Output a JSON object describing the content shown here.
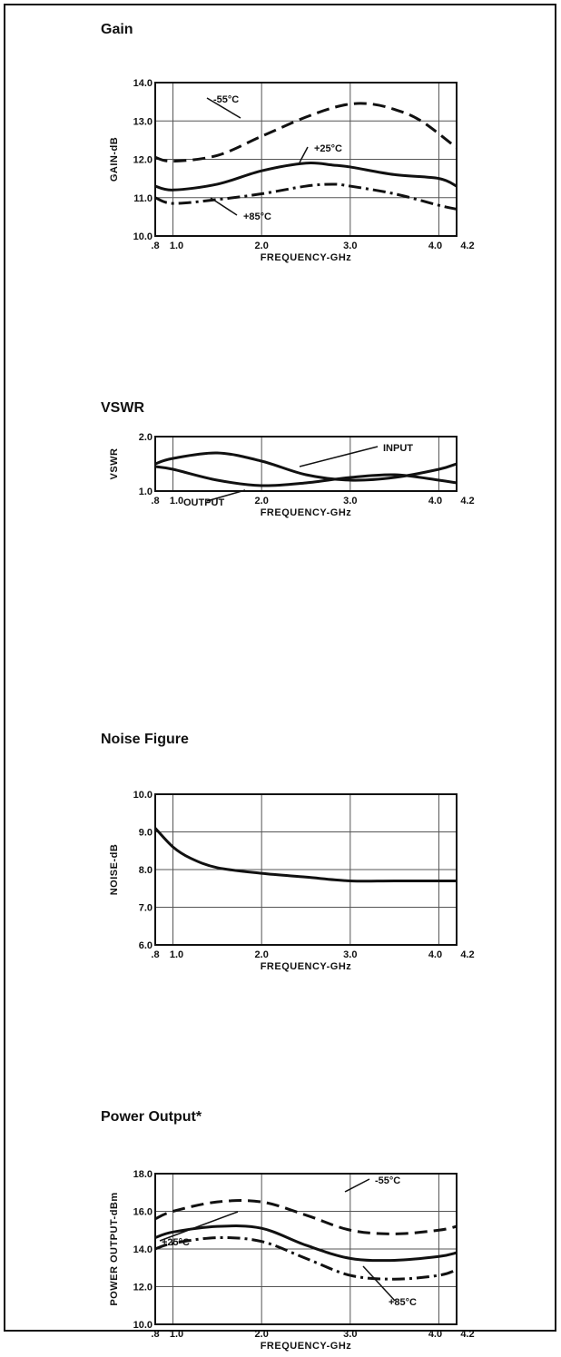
{
  "chart_data": [
    {
      "type": "line",
      "title": "Gain",
      "xlabel": "FREQUENCY-GHz",
      "ylabel": "GAIN-dB",
      "xlim": [
        0.8,
        4.2
      ],
      "ylim": [
        10.0,
        14.0
      ],
      "x_ticks": [
        ".8",
        "1.0",
        "2.0",
        "3.0",
        "4.0",
        "4.2"
      ],
      "y_ticks": [
        "10.0",
        "11.0",
        "12.0",
        "13.0",
        "14.0"
      ],
      "grid": true,
      "series": [
        {
          "name": "-55°C",
          "style": "dashed",
          "x": [
            0.8,
            1.0,
            1.5,
            2.0,
            2.5,
            2.9,
            3.2,
            3.5,
            3.8,
            4.2
          ],
          "y": [
            12.05,
            11.95,
            12.1,
            12.6,
            13.1,
            13.4,
            13.45,
            13.3,
            13.0,
            12.3
          ]
        },
        {
          "name": "+25°C",
          "style": "solid",
          "x": [
            0.8,
            1.0,
            1.5,
            2.0,
            2.5,
            2.8,
            3.0,
            3.5,
            4.0,
            4.2
          ],
          "y": [
            11.3,
            11.2,
            11.35,
            11.7,
            11.9,
            11.85,
            11.8,
            11.6,
            11.5,
            11.3
          ]
        },
        {
          "name": "+85°C",
          "style": "dashdot",
          "x": [
            0.8,
            1.0,
            1.5,
            2.0,
            2.5,
            2.8,
            3.0,
            3.5,
            4.0,
            4.2
          ],
          "y": [
            11.0,
            10.85,
            10.95,
            11.1,
            11.3,
            11.35,
            11.3,
            11.1,
            10.8,
            10.7
          ]
        }
      ],
      "annotations": [
        "-55°C",
        "+25°C",
        "+85°C"
      ]
    },
    {
      "type": "line",
      "title": "VSWR",
      "xlabel": "FREQUENCY-GHz",
      "ylabel": "VSWR",
      "xlim": [
        0.8,
        4.2
      ],
      "ylim": [
        1.0,
        2.0
      ],
      "y_ticks": [
        "1.0",
        "2.0"
      ],
      "x_ticks": [
        ".8",
        "1.0",
        "2.0",
        "3.0",
        "4.0",
        "4.2"
      ],
      "grid": true,
      "series": [
        {
          "name": "INPUT",
          "style": "solid",
          "x": [
            0.8,
            1.0,
            1.5,
            2.0,
            2.5,
            3.0,
            3.5,
            4.0,
            4.2
          ],
          "y": [
            1.5,
            1.6,
            1.7,
            1.55,
            1.3,
            1.2,
            1.25,
            1.4,
            1.5
          ]
        },
        {
          "name": "OUTPUT",
          "style": "solid",
          "x": [
            0.8,
            1.0,
            1.5,
            2.0,
            2.5,
            3.0,
            3.5,
            4.0,
            4.2
          ],
          "y": [
            1.45,
            1.4,
            1.2,
            1.1,
            1.15,
            1.25,
            1.3,
            1.2,
            1.15
          ]
        }
      ],
      "annotations": [
        "INPUT",
        "OUTPUT"
      ]
    },
    {
      "type": "line",
      "title": "Noise Figure",
      "xlabel": "FREQUENCY-GHz",
      "ylabel": "NOISE-dB",
      "xlim": [
        0.8,
        4.2
      ],
      "ylim": [
        6.0,
        10.0
      ],
      "x_ticks": [
        ".8",
        "1.0",
        "2.0",
        "3.0",
        "4.0",
        "4.2"
      ],
      "y_ticks": [
        "6.0",
        "7.0",
        "8.0",
        "9.0",
        "10.0"
      ],
      "grid": true,
      "series": [
        {
          "name": "",
          "style": "solid",
          "x": [
            0.8,
            1.0,
            1.2,
            1.5,
            2.0,
            2.5,
            3.0,
            3.5,
            4.2
          ],
          "y": [
            9.1,
            8.6,
            8.3,
            8.05,
            7.9,
            7.8,
            7.7,
            7.7,
            7.7
          ]
        }
      ],
      "annotations": []
    },
    {
      "type": "line",
      "title": "Power Output*",
      "xlabel": "FREQUENCY-GHz",
      "ylabel": "POWER OUTPUT-dBm",
      "xlim": [
        0.8,
        4.2
      ],
      "ylim": [
        10.0,
        18.0
      ],
      "x_ticks": [
        ".8",
        "1.0",
        "2.0",
        "3.0",
        "4.0",
        "4.2"
      ],
      "y_ticks": [
        "10.0",
        "12.0",
        "14.0",
        "16.0",
        "18.0"
      ],
      "grid": true,
      "series": [
        {
          "name": "-55°C",
          "style": "dashed",
          "x": [
            0.8,
            1.0,
            1.5,
            2.0,
            2.5,
            3.0,
            3.5,
            4.0,
            4.2
          ],
          "y": [
            15.6,
            16.0,
            16.5,
            16.5,
            15.8,
            15.0,
            14.8,
            15.0,
            15.2
          ]
        },
        {
          "name": "+25°C",
          "style": "solid",
          "x": [
            0.8,
            1.0,
            1.5,
            2.0,
            2.5,
            3.0,
            3.5,
            4.0,
            4.2
          ],
          "y": [
            14.6,
            14.9,
            15.2,
            15.1,
            14.2,
            13.5,
            13.4,
            13.6,
            13.8
          ]
        },
        {
          "name": "+85°C",
          "style": "dashdot",
          "x": [
            0.8,
            1.0,
            1.5,
            2.0,
            2.5,
            3.0,
            3.5,
            4.0,
            4.2
          ],
          "y": [
            14.0,
            14.3,
            14.6,
            14.4,
            13.5,
            12.6,
            12.4,
            12.6,
            12.9
          ]
        }
      ],
      "annotations": [
        "-55°C",
        "+25°C",
        "+85°C"
      ]
    }
  ]
}
